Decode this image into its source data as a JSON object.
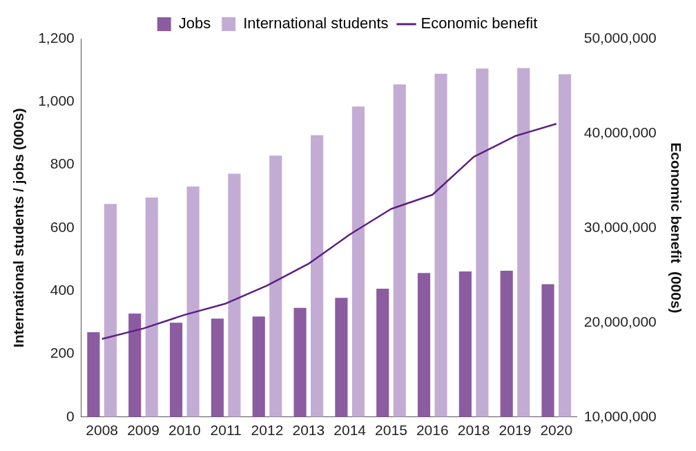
{
  "chart_data": {
    "type": "bar",
    "categories": [
      "2008",
      "2009",
      "2010",
      "2011",
      "2012",
      "2013",
      "2014",
      "2015",
      "2016",
      "2018",
      "2019",
      "2020"
    ],
    "series": [
      {
        "name": "Jobs",
        "color": "#8b5ca0",
        "values": [
          269,
          328,
          299,
          312,
          319,
          346,
          378,
          407,
          457,
          462,
          464,
          421
        ]
      },
      {
        "name": "International students",
        "color": "#c3acd4",
        "values": [
          676,
          696,
          731,
          772,
          829,
          894,
          985,
          1055,
          1089,
          1105,
          1107,
          1087
        ]
      },
      {
        "name": "Economic benefit",
        "type": "line",
        "axis": "y2",
        "color": "#5c1f80",
        "values": [
          18260000,
          19360000,
          20800000,
          22000000,
          23900000,
          26200000,
          29300000,
          32000000,
          33500000,
          37500000,
          39700000,
          41000000
        ]
      }
    ],
    "ylabel": "International students / jobs (000s)",
    "y2label": "Economic benefit  (000s)",
    "ylim": [
      0,
      1200
    ],
    "yticks": [
      0,
      {
        "value": 200,
        "label": "200"
      },
      {
        "value": 400,
        "label": "400"
      },
      {
        "value": 600,
        "label": "600"
      },
      {
        "value": 800,
        "label": "800"
      },
      {
        "value": 1000,
        "label": "1,000"
      },
      {
        "value": 1200,
        "label": "1,200"
      }
    ],
    "y2lim": [
      10000000,
      50000000
    ],
    "y2ticks": [
      {
        "value": 10000000,
        "label": "10,000,000"
      },
      {
        "value": 20000000,
        "label": "20,000,000"
      },
      {
        "value": 30000000,
        "label": "30,000,000"
      },
      {
        "value": 40000000,
        "label": "40,000,000"
      },
      {
        "value": 50000000,
        "label": "50,000,000"
      }
    ],
    "grid": false,
    "legend": "top",
    "marker": "none",
    "line_style": "solid"
  }
}
